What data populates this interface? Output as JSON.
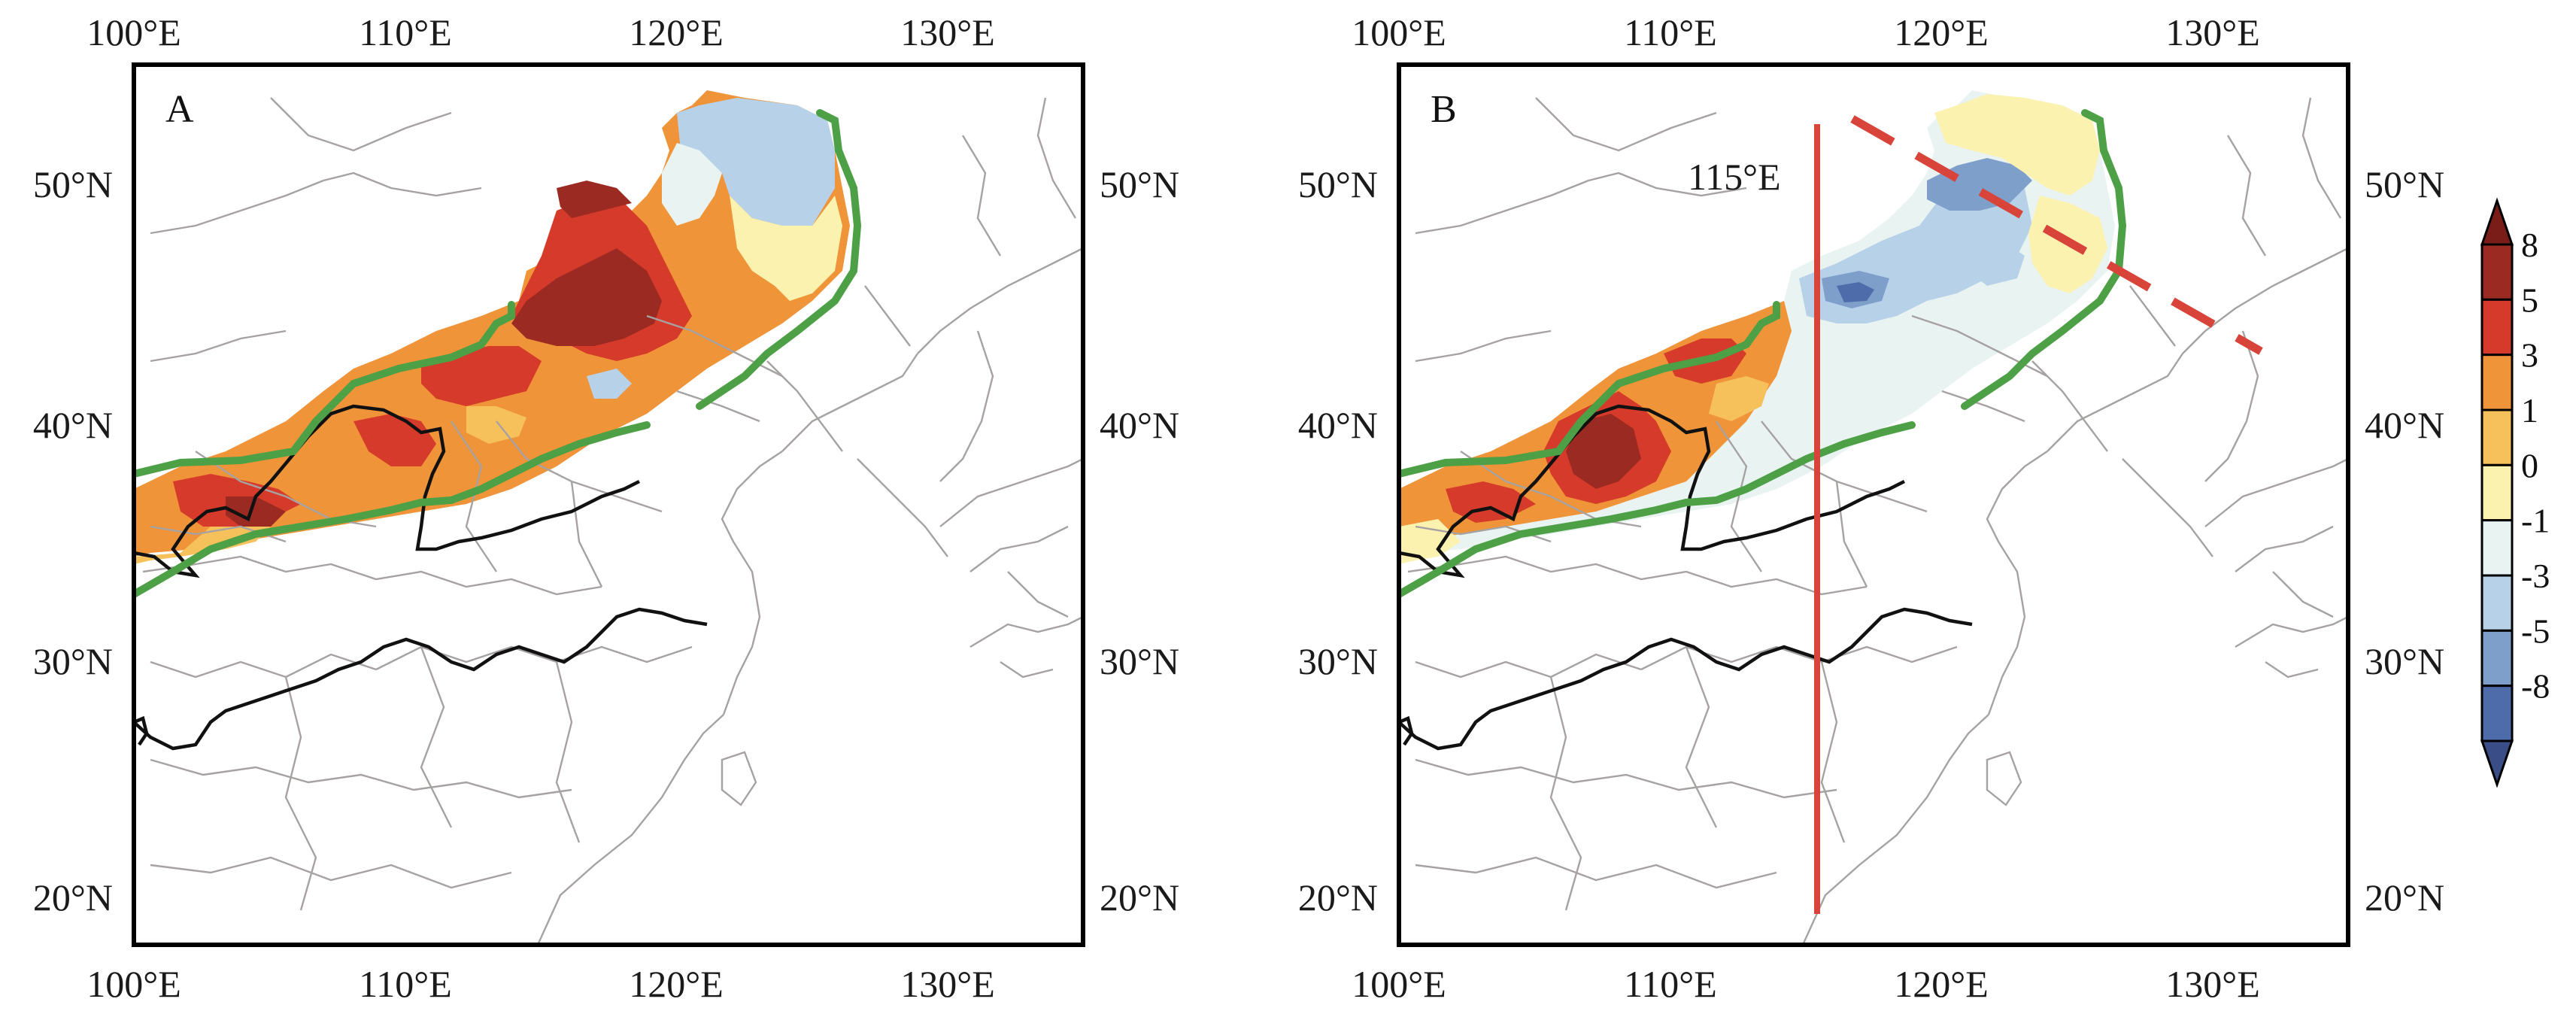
{
  "panels": [
    {
      "label": "A",
      "lon_ticks": [
        "100°E",
        "110°E",
        "120°E",
        "130°E"
      ],
      "lat_ticks": [
        "20°N",
        "30°N",
        "40°N",
        "50°N"
      ],
      "annotation": ""
    },
    {
      "label": "B",
      "lon_ticks": [
        "100°E",
        "110°E",
        "120°E",
        "130°E"
      ],
      "lat_ticks": [
        "20°N",
        "30°N",
        "40°N",
        "50°N"
      ],
      "annotation": "115°E"
    }
  ],
  "map_extent": {
    "lon": [
      100,
      135
    ],
    "lat": [
      18,
      54.5
    ]
  },
  "legend": {
    "labels": [
      "8",
      "5",
      "3",
      "1",
      "0",
      "-1",
      "-3",
      "-5",
      "-8"
    ],
    "colors": [
      "#9b2a22",
      "#d63a2a",
      "#ef9438",
      "#f6c15a",
      "#fbf2b0",
      "#e9f3f2",
      "#b7d2e8",
      "#7f9fcb",
      "#4e6ca9"
    ],
    "over_color": "#7a1c17",
    "under_color": "#3b4d86"
  },
  "line_colors": {
    "boundary": "#4da046",
    "meridian": "#d9443a",
    "river": "#111111",
    "province": "#a7a2a2"
  }
}
